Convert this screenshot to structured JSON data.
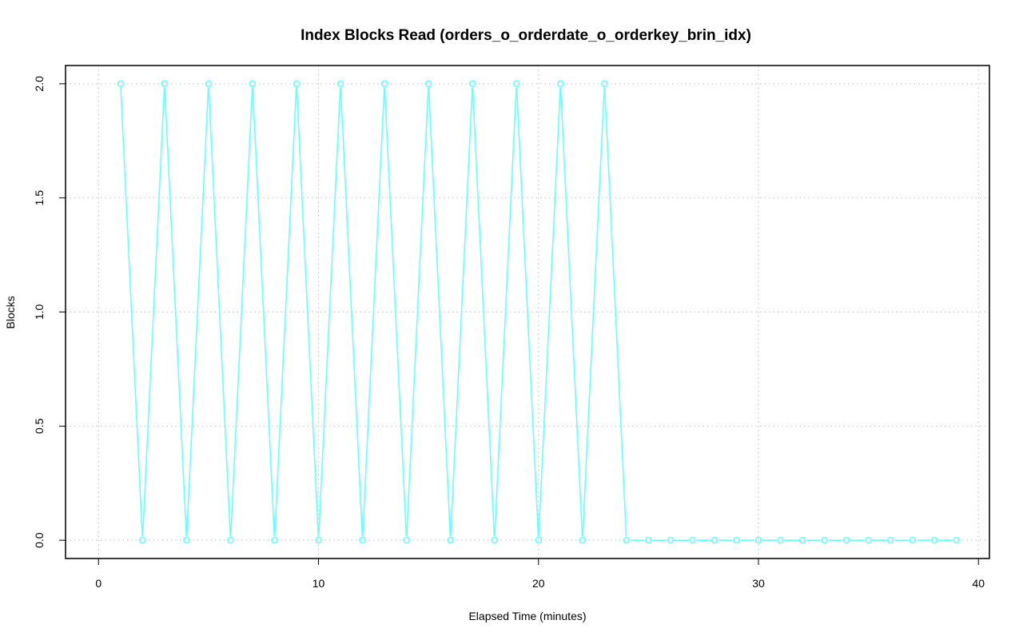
{
  "chart_data": {
    "type": "line",
    "title": "Index Blocks Read (orders_o_orderdate_o_orderkey_brin_idx)",
    "xlabel": "Elapsed Time (minutes)",
    "ylabel": "Blocks",
    "xlim": [
      -1.5,
      40.5
    ],
    "ylim": [
      -0.08,
      2.08
    ],
    "xticks": [
      0,
      10,
      20,
      30,
      40
    ],
    "yticks": [
      0.0,
      0.5,
      1.0,
      1.5,
      2.0
    ],
    "xtick_labels": [
      "0",
      "10",
      "20",
      "30",
      "40"
    ],
    "ytick_labels": [
      "0.0",
      "0.5",
      "1.0",
      "1.5",
      "2.0"
    ],
    "grid": true,
    "series": [
      {
        "color": "#66ffff",
        "x": [
          1,
          2,
          3,
          4,
          5,
          6,
          7,
          8,
          9,
          10,
          11,
          12,
          13,
          14,
          15,
          16,
          17,
          18,
          19,
          20,
          21,
          22,
          23,
          24,
          25,
          26,
          27,
          28,
          29,
          30,
          31,
          32,
          33,
          34,
          35,
          36,
          37,
          38,
          39
        ],
        "values": [
          2,
          0,
          2,
          0,
          2,
          0,
          2,
          0,
          2,
          0,
          2,
          0,
          2,
          0,
          2,
          0,
          2,
          0,
          2,
          0,
          2,
          0,
          2,
          0,
          0,
          0,
          0,
          0,
          0,
          0,
          0,
          0,
          0,
          0,
          0,
          0,
          0,
          0,
          0
        ]
      }
    ]
  }
}
